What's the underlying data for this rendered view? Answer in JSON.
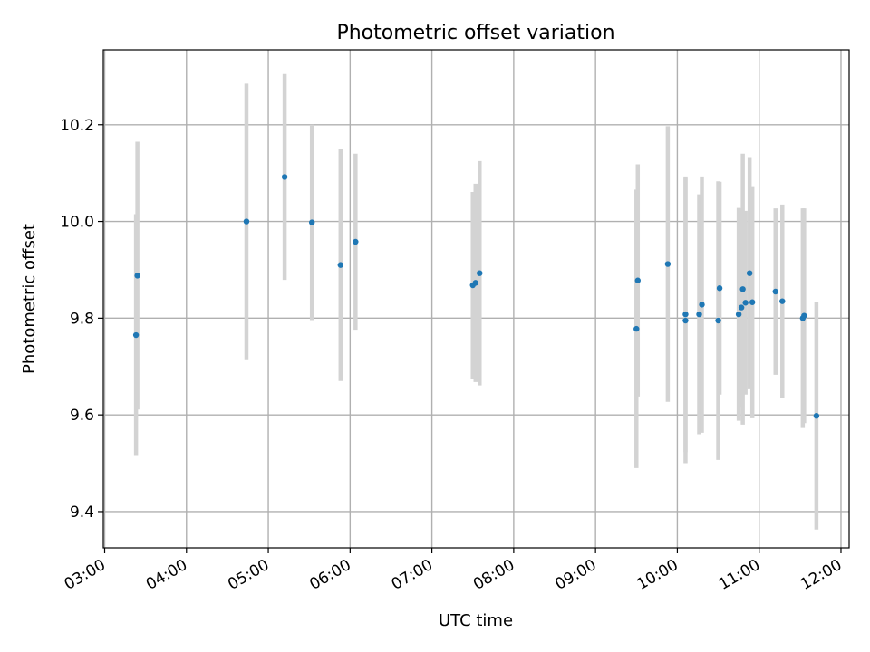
{
  "chart_data": {
    "type": "scatter",
    "title": "Photometric offset variation",
    "xlabel": "UTC time",
    "ylabel": "Photometric offset",
    "x_axis": {
      "kind": "time",
      "range": [
        "02:59",
        "12:06"
      ],
      "ticks": [
        "03:00",
        "04:00",
        "05:00",
        "06:00",
        "07:00",
        "08:00",
        "09:00",
        "10:00",
        "11:00",
        "12:00"
      ]
    },
    "y_axis": {
      "range": [
        9.325,
        10.355
      ],
      "ticks": [
        "9.4",
        "9.6",
        "9.8",
        "10.0",
        "10.2"
      ]
    },
    "grid": true,
    "colors": {
      "point": "#1f77b4",
      "errorbar": "#d3d3d3"
    },
    "points": [
      {
        "time": "03:23",
        "y": 9.765,
        "err": 0.25
      },
      {
        "time": "03:24",
        "y": 9.888,
        "err": 0.277
      },
      {
        "time": "04:44",
        "y": 10.0,
        "err": 0.285
      },
      {
        "time": "05:12",
        "y": 10.092,
        "err": 0.213
      },
      {
        "time": "05:32",
        "y": 9.998,
        "err": 0.202
      },
      {
        "time": "05:53",
        "y": 9.91,
        "err": 0.24
      },
      {
        "time": "06:04",
        "y": 9.958,
        "err": 0.182
      },
      {
        "time": "07:30",
        "y": 9.868,
        "err": 0.193
      },
      {
        "time": "07:32",
        "y": 9.873,
        "err": 0.205
      },
      {
        "time": "07:35",
        "y": 9.893,
        "err": 0.232
      },
      {
        "time": "09:30",
        "y": 9.778,
        "err": 0.288
      },
      {
        "time": "09:31",
        "y": 9.878,
        "err": 0.24
      },
      {
        "time": "09:53",
        "y": 9.912,
        "err": 0.285
      },
      {
        "time": "10:06",
        "y": 9.795,
        "err": 0.295
      },
      {
        "time": "10:06",
        "y": 9.808,
        "err": 0.285
      },
      {
        "time": "10:16",
        "y": 9.808,
        "err": 0.248
      },
      {
        "time": "10:18",
        "y": 9.828,
        "err": 0.265
      },
      {
        "time": "10:30",
        "y": 9.795,
        "err": 0.288
      },
      {
        "time": "10:31",
        "y": 9.862,
        "err": 0.22
      },
      {
        "time": "10:45",
        "y": 9.808,
        "err": 0.22
      },
      {
        "time": "10:47",
        "y": 9.822,
        "err": 0.205
      },
      {
        "time": "10:48",
        "y": 9.86,
        "err": 0.28
      },
      {
        "time": "10:50",
        "y": 9.832,
        "err": 0.19
      },
      {
        "time": "10:53",
        "y": 9.893,
        "err": 0.24
      },
      {
        "time": "10:55",
        "y": 9.833,
        "err": 0.24
      },
      {
        "time": "11:12",
        "y": 9.855,
        "err": 0.172
      },
      {
        "time": "11:17",
        "y": 9.835,
        "err": 0.2
      },
      {
        "time": "11:32",
        "y": 9.8,
        "err": 0.227
      },
      {
        "time": "11:33",
        "y": 9.805,
        "err": 0.222
      },
      {
        "time": "11:42",
        "y": 9.598,
        "err": 0.235
      }
    ]
  }
}
